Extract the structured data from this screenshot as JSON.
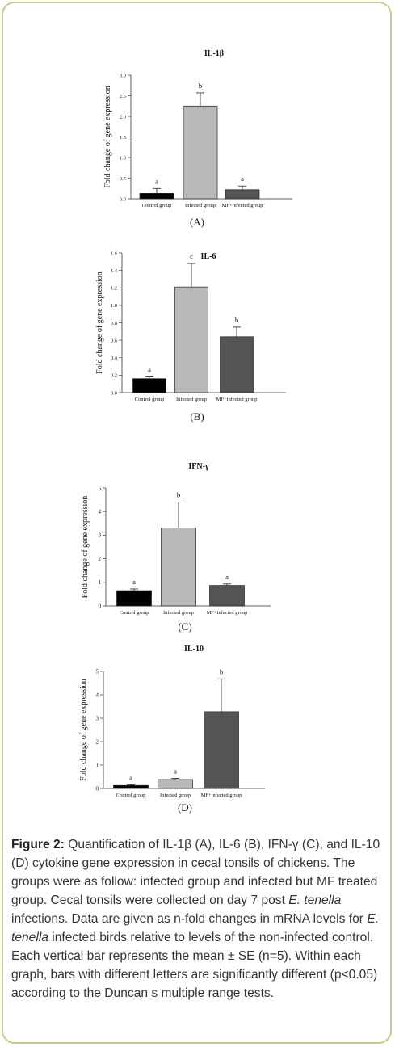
{
  "chart_data": [
    {
      "type": "bar",
      "title": "IL-1β",
      "panel_label": "(A)",
      "ylabel": "Fold change of gene expression",
      "categories": [
        "Control group",
        "Infected group",
        "MF+infected group"
      ],
      "values": [
        0.13,
        2.25,
        0.22
      ],
      "errors": [
        0.12,
        0.32,
        0.09
      ],
      "letters": [
        "a",
        "b",
        "a"
      ],
      "ylim": [
        0,
        3.0
      ],
      "yticks": [
        "0.0",
        "0.5",
        "1.0",
        "1.5",
        "2.0",
        "2.5",
        "3.0"
      ],
      "colors": [
        "#000000",
        "#b8b8b8",
        "#555555"
      ]
    },
    {
      "type": "bar",
      "title": "IL-6",
      "panel_label": "(B)",
      "ylabel": "Fold change of gene expression",
      "categories": [
        "Control group",
        "Infected group",
        "MF+infected group"
      ],
      "values": [
        0.16,
        1.21,
        0.64
      ],
      "errors": [
        0.02,
        0.27,
        0.11
      ],
      "letters": [
        "a",
        "c",
        "b"
      ],
      "ylim": [
        0,
        1.6
      ],
      "yticks": [
        "0.0",
        "0.2",
        "0.4",
        "0.6",
        "0.8",
        "1.0",
        "1.2",
        "1.4",
        "1.6"
      ],
      "colors": [
        "#000000",
        "#b8b8b8",
        "#555555"
      ]
    },
    {
      "type": "bar",
      "title": "IFN-γ",
      "panel_label": "(C)",
      "ylabel": "Fold change of gene expression",
      "categories": [
        "Control group",
        "Infected group",
        "MF+infected group"
      ],
      "values": [
        0.65,
        3.3,
        0.87
      ],
      "errors": [
        0.07,
        1.1,
        0.06
      ],
      "letters": [
        "a",
        "b",
        "a"
      ],
      "ylim": [
        0,
        5
      ],
      "yticks": [
        "0",
        "1",
        "2",
        "3",
        "4",
        "5"
      ],
      "colors": [
        "#000000",
        "#b8b8b8",
        "#555555"
      ]
    },
    {
      "type": "bar",
      "title": "IL-10",
      "panel_label": "(D)",
      "ylabel": "Fold change of gene expression",
      "categories": [
        "Control group",
        "Infected group",
        "MF+infected group"
      ],
      "values": [
        0.13,
        0.38,
        3.28
      ],
      "errors": [
        0.03,
        0.05,
        1.4
      ],
      "letters": [
        "a",
        "a",
        "b"
      ],
      "ylim": [
        0,
        5
      ],
      "yticks": [
        "0",
        "1",
        "2",
        "3",
        "4",
        "5"
      ],
      "colors": [
        "#000000",
        "#b8b8b8",
        "#555555"
      ]
    }
  ],
  "caption": {
    "label": "Figure 2:",
    "part1": " Quantification of IL-1β (A), IL-6 (B), IFN-γ (C), and IL-10 (D) cytokine gene expression in cecal tonsils of chickens. The groups were as follow: infected group and infected but MF treated group. Cecal tonsils were collected on day 7 post ",
    "species1": "E. tenella",
    "part2": " infections. Data are given as n-fold changes in mRNA levels for ",
    "species2": "E. tenella",
    "part3": " infected birds relative to levels of the non-infected control. Each vertical bar represents the mean ± SE (n=5). Within each graph, bars with different letters are significantly different (p<0.05) according to the Duncan s multiple range tests."
  }
}
